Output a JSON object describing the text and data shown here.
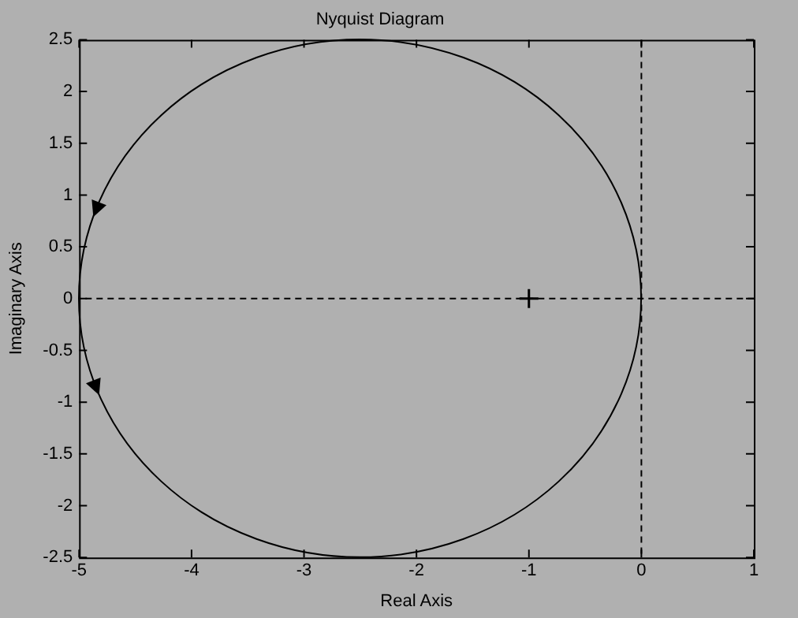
{
  "chart_data": {
    "type": "scatter",
    "title": "Nyquist Diagram",
    "xlabel": "Real Axis",
    "ylabel": "Imaginary Axis",
    "xlim": [
      -5,
      1
    ],
    "xticks": [
      -5,
      -4,
      -3,
      -2,
      -1,
      0,
      1
    ],
    "ylim": [
      -2.5,
      2.5
    ],
    "yticks": [
      -2.5,
      -2,
      -1.5,
      -1,
      -0.5,
      0,
      0.5,
      1,
      1.5,
      2,
      2.5
    ],
    "grid": false,
    "legend": false,
    "series": [
      {
        "color": "#000000",
        "marker": "cross",
        "x": [
          -1
        ],
        "values": [
          0
        ]
      }
    ],
    "ref_lines": [
      {
        "axis": "x",
        "value": 0,
        "color": "#000000",
        "line_style": "dashed"
      },
      {
        "axis": "y",
        "value": 0,
        "color": "#000000",
        "line_style": "dashed"
      }
    ]
  }
}
